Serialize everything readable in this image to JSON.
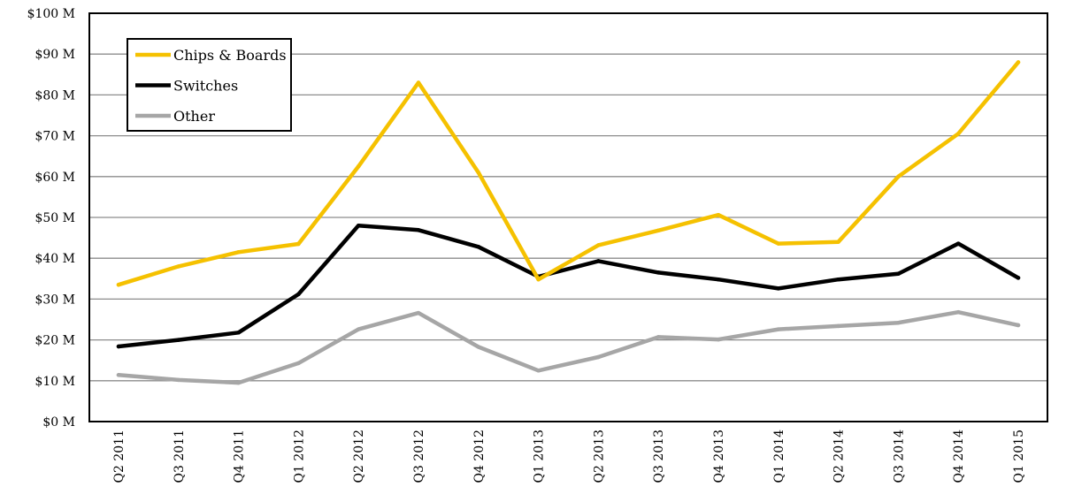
{
  "chart_data": {
    "type": "line",
    "title": "",
    "xlabel": "",
    "ylabel": "",
    "ylim": [
      0,
      100
    ],
    "yticks": [
      "$0 M",
      "$10 M",
      "$20 M",
      "$30 M",
      "$40 M",
      "$50 M",
      "$60 M",
      "$70 M",
      "$80 M",
      "$90 M",
      "$100 M"
    ],
    "categories": [
      "Q2 2011",
      "Q3 2011",
      "Q4 2011",
      "Q1 2012",
      "Q2 2012",
      "Q3 2012",
      "Q4 2012",
      "Q1 2013",
      "Q2 2013",
      "Q3 2013",
      "Q4 2013",
      "Q1 2014",
      "Q2 2014",
      "Q3 2014",
      "Q4 2014",
      "Q1 2015"
    ],
    "grid": true,
    "legend_position": "top-left",
    "series": [
      {
        "name": "Chips & Boards",
        "color": "#f5c100",
        "values": [
          33.5,
          38,
          41.5,
          43.5,
          62.5,
          83,
          61,
          34.8,
          43.2,
          46.8,
          50.6,
          43.6,
          44,
          60,
          70.5,
          88
        ]
      },
      {
        "name": "Switches",
        "color": "#000000",
        "values": [
          18.4,
          20,
          21.8,
          31.2,
          48,
          46.9,
          42.8,
          35.5,
          39.3,
          36.5,
          34.8,
          32.6,
          34.8,
          36.2,
          43.6,
          35.2
        ]
      },
      {
        "name": "Other",
        "color": "#a6a6a6",
        "values": [
          11.4,
          10.2,
          9.5,
          14.3,
          22.6,
          26.6,
          18.3,
          12.5,
          15.8,
          20.7,
          20.1,
          22.6,
          23.4,
          24.2,
          26.8,
          23.6
        ]
      }
    ]
  }
}
